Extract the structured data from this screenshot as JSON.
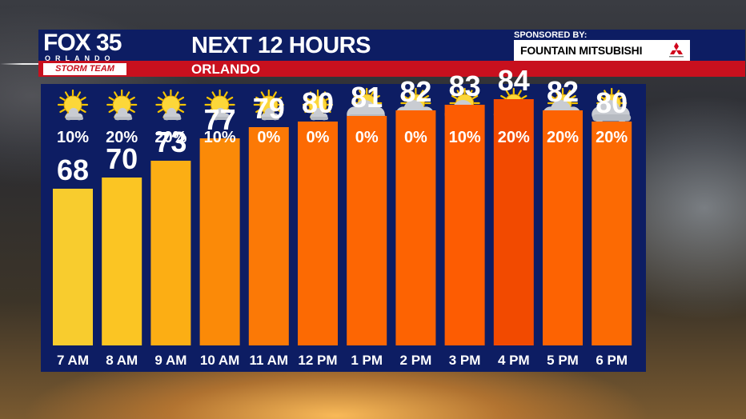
{
  "header": {
    "title": "NEXT 12 HOURS",
    "location": "ORLANDO",
    "logo": {
      "brand": "FOX 35",
      "city": "ORLANDO",
      "team": "STORM TEAM"
    },
    "sponsor_label": "SPONSORED BY:",
    "sponsor_name": "FOUNTAIN MITSUBISHI",
    "colors": {
      "header_blue": "#0d1d63",
      "header_red": "#c8101e"
    }
  },
  "chart_data": {
    "type": "bar",
    "categories": [
      "7 AM",
      "8 AM",
      "9 AM",
      "10 AM",
      "11 AM",
      "12 PM",
      "1 PM",
      "2 PM",
      "3 PM",
      "4 PM",
      "5 PM",
      "6 PM"
    ],
    "values": [
      68,
      70,
      73,
      77,
      79,
      80,
      81,
      82,
      83,
      84,
      82,
      80
    ],
    "data_labels": [
      "68",
      "70",
      "73",
      "77",
      "79",
      "80",
      "81",
      "82",
      "83",
      "84",
      "82",
      "80"
    ],
    "rain_chance": [
      "10%",
      "20%",
      "20%",
      "10%",
      "0%",
      "0%",
      "0%",
      "0%",
      "10%",
      "20%",
      "20%",
      "20%"
    ],
    "conditions": [
      "sunny-icon",
      "sunny-icon",
      "sunny-icon",
      "sunny-icon",
      "sunny-icon",
      "sunny-icon",
      "partly-cloudy-icon",
      "partly-cloudy-icon",
      "partly-cloudy-icon",
      "partly-cloudy-icon",
      "partly-cloudy-icon",
      "partly-cloudy-icon"
    ],
    "bar_colors": [
      "#f8cc2e",
      "#fbc523",
      "#fcae14",
      "#fb8a08",
      "#fb7906",
      "#fc6a03",
      "#fd6603",
      "#fd6302",
      "#fd5c02",
      "#f24a00",
      "#fd6302",
      "#fc6a03"
    ],
    "title": "NEXT 12 HOURS",
    "xlabel": "",
    "ylabel": "",
    "ylim": [
      40,
      85
    ],
    "grid": false,
    "legend": "none"
  }
}
